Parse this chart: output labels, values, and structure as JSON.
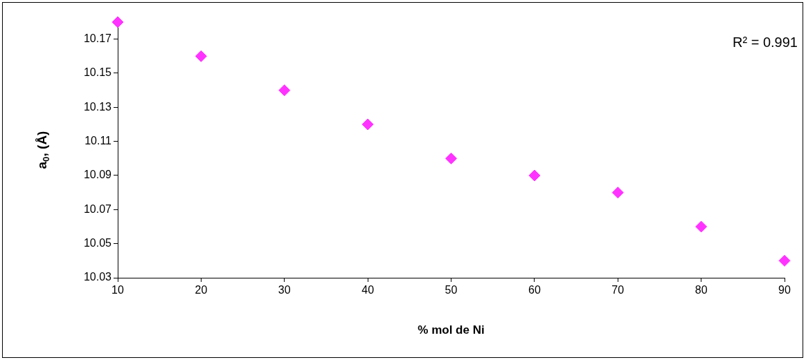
{
  "chart_data": {
    "type": "scatter",
    "xlabel": "% mol de Ni",
    "ylabel": "a$_{0}$, (Å)",
    "x": [
      10,
      20,
      30,
      40,
      50,
      60,
      70,
      80,
      90
    ],
    "values": [
      10.18,
      10.16,
      10.14,
      10.12,
      10.1,
      10.09,
      10.08,
      10.06,
      10.04
    ],
    "color": "#ff33ff",
    "marker": "diamond",
    "xlim": [
      10,
      90
    ],
    "xticks": [
      10,
      20,
      30,
      40,
      50,
      60,
      70,
      80,
      90
    ],
    "ylim": [
      10.03,
      10.18
    ],
    "yticks": [
      {
        "value": 10.03,
        "label": "10.03"
      },
      {
        "value": 10.05,
        "label": "10.05"
      },
      {
        "value": 10.07,
        "label": "10.07"
      },
      {
        "value": 10.09,
        "label": "10.09"
      },
      {
        "value": 10.11,
        "label": "10.11"
      },
      {
        "value": 10.13,
        "label": "10.13"
      },
      {
        "value": 10.15,
        "label": "10.15"
      },
      {
        "value": 10.17,
        "label": "10.17"
      }
    ],
    "annotations": [
      "R² = 0.991"
    ]
  }
}
